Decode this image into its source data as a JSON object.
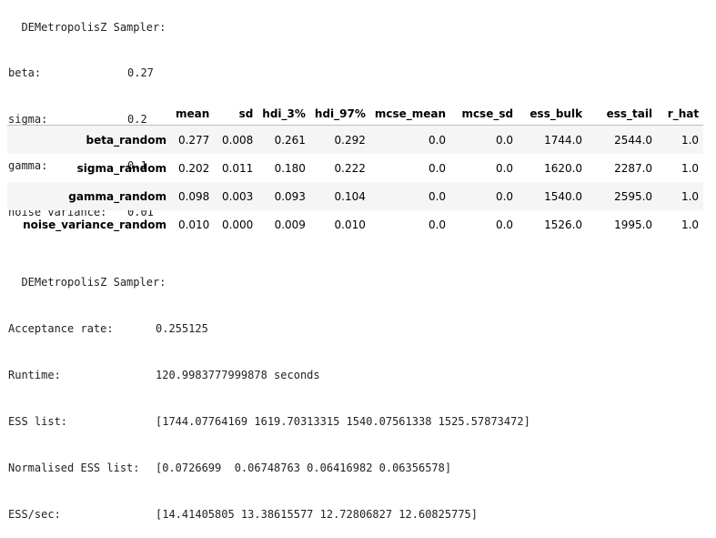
{
  "header": {
    "title": "DEMetropolisZ Sampler:"
  },
  "params": [
    {
      "key": "beta:",
      "value": "0.27"
    },
    {
      "key": "sigma:",
      "value": "0.2"
    },
    {
      "key": "gamma:",
      "value": "0.1"
    },
    {
      "key": "noise variance:",
      "value": "0.01"
    }
  ],
  "table": {
    "columns": [
      "mean",
      "sd",
      "hdi_3%",
      "hdi_97%",
      "mcse_mean",
      "mcse_sd",
      "ess_bulk",
      "ess_tail",
      "r_hat"
    ],
    "rows": [
      {
        "index": "beta_random",
        "cells": [
          "0.277",
          "0.008",
          "0.261",
          "0.292",
          "0.0",
          "0.0",
          "1744.0",
          "2544.0",
          "1.0"
        ]
      },
      {
        "index": "sigma_random",
        "cells": [
          "0.202",
          "0.011",
          "0.180",
          "0.222",
          "0.0",
          "0.0",
          "1620.0",
          "2287.0",
          "1.0"
        ]
      },
      {
        "index": "gamma_random",
        "cells": [
          "0.098",
          "0.003",
          "0.093",
          "0.104",
          "0.0",
          "0.0",
          "1540.0",
          "2595.0",
          "1.0"
        ]
      },
      {
        "index": "noise_variance_random",
        "cells": [
          "0.010",
          "0.000",
          "0.009",
          "0.010",
          "0.0",
          "0.0",
          "1526.0",
          "1995.0",
          "1.0"
        ]
      }
    ]
  },
  "footer": {
    "title": "DEMetropolisZ Sampler:",
    "stats": [
      {
        "key": "Acceptance rate:",
        "value": "0.255125"
      },
      {
        "key": "Runtime:",
        "value": "120.9983777999878 seconds"
      },
      {
        "key": "ESS list:",
        "value": "[1744.07764169 1619.70313315 1540.07561338 1525.57873472]"
      },
      {
        "key": "Normalised ESS list:",
        "value": "[0.0726699  0.06748763 0.06416982 0.06356578]"
      },
      {
        "key": "ESS/sec:",
        "value": "[14.41405805 13.38615577 12.72806827 12.60825775]"
      }
    ]
  }
}
